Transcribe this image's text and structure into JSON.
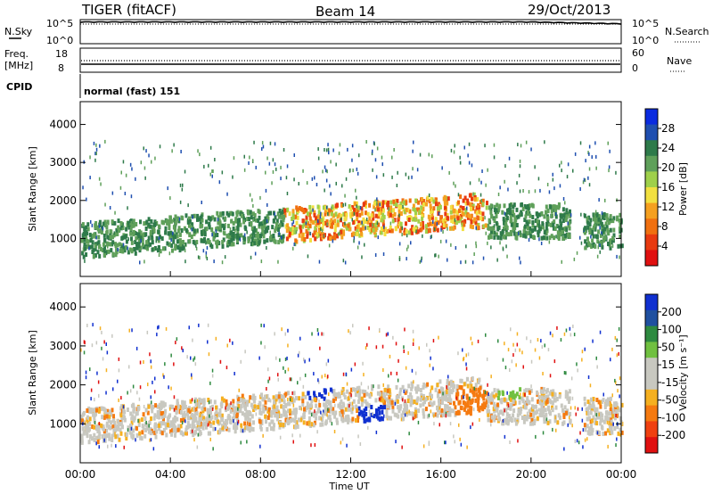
{
  "header": {
    "title": "TIGER (fitACF)",
    "beam": "Beam 14",
    "date": "29/Oct/2013"
  },
  "aux_panels": {
    "nsky_label": "N.Sky",
    "nsearch_label": "N.Search",
    "nsky_ticks": [
      "10^5",
      "10^0"
    ],
    "nsearch_ticks": [
      "10^5",
      "10^0"
    ],
    "freq_label": "Freq.",
    "freq_unit": "[MHz]",
    "freq_ticks": [
      "18",
      "8"
    ],
    "nave_label": "Nave",
    "nave_ticks": [
      "60",
      "0"
    ],
    "cpid_label": "CPID",
    "cpid_text": "normal (fast) 151"
  },
  "colors": {
    "power": [
      "#0a2be0",
      "#1f4fb0",
      "#2e7a4a",
      "#5fa05a",
      "#9fd04a",
      "#f2e040",
      "#f5a020",
      "#f07010",
      "#e83a10",
      "#e01010"
    ],
    "velocity": [
      "#1030d0",
      "#1f50a0",
      "#2e8a40",
      "#70c040",
      "#c8c8c0",
      "#c8c8c0",
      "#f5b020",
      "#f57a10",
      "#f04010",
      "#e01010"
    ]
  },
  "chart_data": [
    {
      "type": "heatmap",
      "name": "power",
      "ylabel": "Slant Range [km]",
      "yticks": [
        "4000",
        "3000",
        "2000",
        "1000"
      ],
      "ylim": [
        0,
        4600
      ],
      "xlim": [
        0,
        24
      ],
      "colorbar_label": "Power [dB]",
      "colorbar_ticks": [
        "28",
        "24",
        "20",
        "16",
        "12",
        "8",
        "4"
      ],
      "colorbar_range": [
        0,
        32
      ]
    },
    {
      "type": "heatmap",
      "name": "velocity",
      "ylabel": "Slant Range [km]",
      "yticks": [
        "4000",
        "3000",
        "2000",
        "1000"
      ],
      "ylim": [
        0,
        4600
      ],
      "xlim": [
        0,
        24
      ],
      "colorbar_label": "Velocity [m s⁻¹]",
      "colorbar_ticks": [
        "200",
        "100",
        "50",
        "15",
        "-15",
        "-50",
        "-100",
        "-200"
      ]
    }
  ],
  "xaxis": {
    "label": "Time UT",
    "ticks": [
      "00:00",
      "04:00",
      "08:00",
      "12:00",
      "16:00",
      "20:00",
      "00:00"
    ]
  }
}
